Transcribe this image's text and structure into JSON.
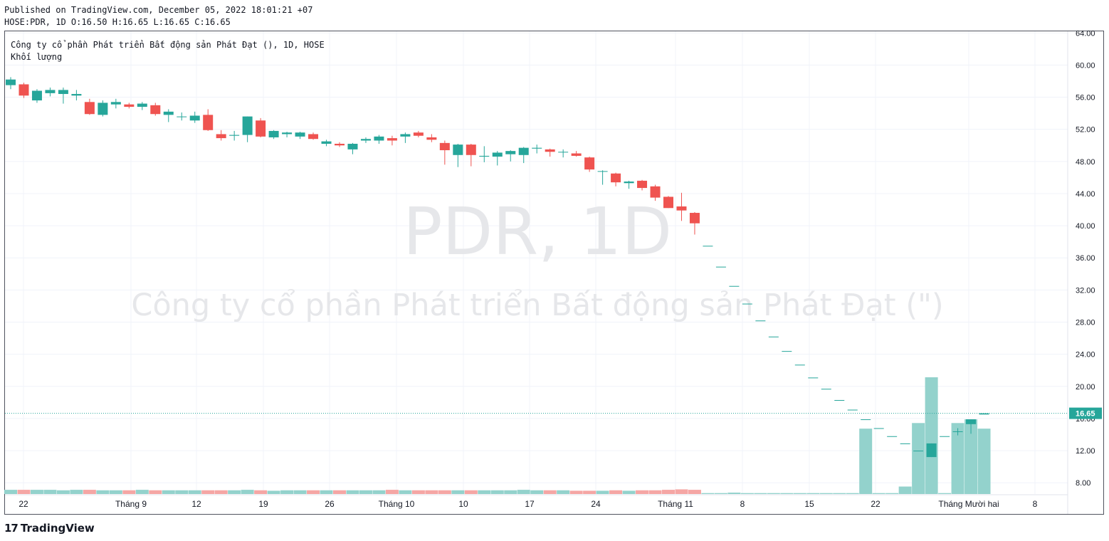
{
  "header": {
    "published": "Published on TradingView.com, December 05, 2022 18:01:21 +07",
    "ohlc": "HOSE:PDR, 1D O:16.50 H:16.65 L:16.65 C:16.65"
  },
  "legend": {
    "title": "Công ty cổ phần Phát triển Bất động sản Phát Đạt (), 1D, HOSE",
    "volume_label": "Khối lượng"
  },
  "watermark": {
    "symbol": "PDR, 1D",
    "company": "Công ty cổ phần Phát triển Bất động sản Phát Đạt (\")"
  },
  "footer": {
    "logo_mark": "17",
    "brand": "TradingView"
  },
  "colors": {
    "up": "#26a69a",
    "down": "#ef5350",
    "volume_up": "#93d2cc",
    "volume_down": "#f5a6a4",
    "grid": "#f0f3fa",
    "price_line": "#26a69a",
    "watermark": "#e6e7ea"
  },
  "chart_data": {
    "type": "candlestick",
    "symbol": "HOSE:PDR",
    "interval": "1D",
    "y_axis": {
      "ticks": [
        "64.00",
        "60.00",
        "56.00",
        "52.00",
        "48.00",
        "44.00",
        "40.00",
        "36.00",
        "32.00",
        "28.00",
        "24.00",
        "20.00",
        "16.00",
        "12.00",
        "8.00"
      ],
      "range": [
        6.6,
        64.2
      ]
    },
    "last_price": 16.65,
    "last_price_label": "16.65",
    "x_axis": {
      "ticks": [
        "22",
        "Tháng 9",
        "12",
        "19",
        "26",
        "Tháng 10",
        "10",
        "17",
        "24",
        "Tháng 11",
        "8",
        "15",
        "22",
        "Tháng Mười hai",
        "8"
      ]
    },
    "candles": [
      {
        "o": 57.5,
        "h": 58.5,
        "l": 57.0,
        "c": 58.2
      },
      {
        "o": 57.6,
        "h": 57.8,
        "l": 55.9,
        "c": 56.2
      },
      {
        "o": 55.6,
        "h": 57.0,
        "l": 55.3,
        "c": 56.8
      },
      {
        "o": 56.5,
        "h": 57.2,
        "l": 56.1,
        "c": 56.9
      },
      {
        "o": 56.4,
        "h": 57.2,
        "l": 55.2,
        "c": 56.9
      },
      {
        "o": 56.2,
        "h": 56.9,
        "l": 55.6,
        "c": 56.4
      },
      {
        "o": 55.4,
        "h": 55.8,
        "l": 53.8,
        "c": 53.9
      },
      {
        "o": 53.8,
        "h": 55.6,
        "l": 53.6,
        "c": 55.3
      },
      {
        "o": 55.1,
        "h": 55.8,
        "l": 54.6,
        "c": 55.4
      },
      {
        "o": 55.1,
        "h": 55.3,
        "l": 54.6,
        "c": 54.8
      },
      {
        "o": 54.8,
        "h": 55.4,
        "l": 54.4,
        "c": 55.2
      },
      {
        "o": 55.0,
        "h": 55.3,
        "l": 53.7,
        "c": 53.9
      },
      {
        "o": 53.8,
        "h": 54.5,
        "l": 52.9,
        "c": 54.2
      },
      {
        "o": 53.6,
        "h": 54.1,
        "l": 53.1,
        "c": 53.6
      },
      {
        "o": 53.1,
        "h": 54.2,
        "l": 52.8,
        "c": 53.7
      },
      {
        "o": 53.8,
        "h": 54.5,
        "l": 51.8,
        "c": 51.9
      },
      {
        "o": 51.4,
        "h": 51.9,
        "l": 50.6,
        "c": 50.9
      },
      {
        "o": 51.2,
        "h": 51.8,
        "l": 50.6,
        "c": 51.3
      },
      {
        "o": 51.3,
        "h": 53.6,
        "l": 50.4,
        "c": 53.6
      },
      {
        "o": 53.1,
        "h": 53.4,
        "l": 51.0,
        "c": 51.1
      },
      {
        "o": 51.0,
        "h": 51.9,
        "l": 50.8,
        "c": 51.8
      },
      {
        "o": 51.4,
        "h": 51.7,
        "l": 51.0,
        "c": 51.6
      },
      {
        "o": 51.1,
        "h": 51.7,
        "l": 50.8,
        "c": 51.6
      },
      {
        "o": 51.4,
        "h": 51.6,
        "l": 50.7,
        "c": 50.8
      },
      {
        "o": 50.2,
        "h": 50.7,
        "l": 49.9,
        "c": 50.5
      },
      {
        "o": 50.2,
        "h": 50.4,
        "l": 49.8,
        "c": 50.0
      },
      {
        "o": 49.5,
        "h": 50.3,
        "l": 48.9,
        "c": 50.2
      },
      {
        "o": 50.6,
        "h": 51.0,
        "l": 50.3,
        "c": 50.8
      },
      {
        "o": 50.6,
        "h": 51.3,
        "l": 50.2,
        "c": 51.1
      },
      {
        "o": 50.9,
        "h": 51.2,
        "l": 50.0,
        "c": 50.6
      },
      {
        "o": 51.1,
        "h": 51.6,
        "l": 50.3,
        "c": 51.4
      },
      {
        "o": 51.6,
        "h": 51.8,
        "l": 51.0,
        "c": 51.2
      },
      {
        "o": 51.0,
        "h": 51.4,
        "l": 50.4,
        "c": 50.7
      },
      {
        "o": 50.3,
        "h": 50.6,
        "l": 47.6,
        "c": 49.4
      },
      {
        "o": 48.8,
        "h": 50.2,
        "l": 47.3,
        "c": 50.1
      },
      {
        "o": 50.1,
        "h": 50.2,
        "l": 47.4,
        "c": 48.8
      },
      {
        "o": 48.6,
        "h": 49.9,
        "l": 47.9,
        "c": 48.7
      },
      {
        "o": 48.6,
        "h": 49.3,
        "l": 47.5,
        "c": 49.1
      },
      {
        "o": 48.9,
        "h": 49.4,
        "l": 48.0,
        "c": 49.3
      },
      {
        "o": 48.8,
        "h": 49.8,
        "l": 47.8,
        "c": 49.7
      },
      {
        "o": 49.6,
        "h": 50.1,
        "l": 49.0,
        "c": 49.7
      },
      {
        "o": 49.5,
        "h": 49.6,
        "l": 48.6,
        "c": 49.2
      },
      {
        "o": 49.2,
        "h": 49.5,
        "l": 48.5,
        "c": 49.2
      },
      {
        "o": 49.0,
        "h": 49.3,
        "l": 48.6,
        "c": 48.7
      },
      {
        "o": 48.5,
        "h": 48.6,
        "l": 46.7,
        "c": 47.0
      },
      {
        "o": 46.8,
        "h": 46.9,
        "l": 45.1,
        "c": 46.8
      },
      {
        "o": 46.5,
        "h": 46.6,
        "l": 44.9,
        "c": 45.4
      },
      {
        "o": 45.3,
        "h": 45.6,
        "l": 44.6,
        "c": 45.5
      },
      {
        "o": 45.6,
        "h": 45.7,
        "l": 44.4,
        "c": 44.7
      },
      {
        "o": 44.9,
        "h": 45.1,
        "l": 43.1,
        "c": 43.5
      },
      {
        "o": 43.6,
        "h": 43.7,
        "l": 42.2,
        "c": 42.2
      },
      {
        "o": 42.4,
        "h": 44.1,
        "l": 40.6,
        "c": 41.9
      },
      {
        "o": 41.6,
        "h": 41.7,
        "l": 38.9,
        "c": 40.3
      },
      {
        "o": 37.5,
        "h": 37.5,
        "l": 37.5,
        "c": 37.5
      },
      {
        "o": 34.9,
        "h": 34.9,
        "l": 34.9,
        "c": 34.9
      },
      {
        "o": 32.5,
        "h": 32.5,
        "l": 32.5,
        "c": 32.5
      },
      {
        "o": 30.3,
        "h": 30.3,
        "l": 30.3,
        "c": 30.3
      },
      {
        "o": 28.2,
        "h": 28.2,
        "l": 28.2,
        "c": 28.2
      },
      {
        "o": 26.2,
        "h": 26.2,
        "l": 26.2,
        "c": 26.2
      },
      {
        "o": 24.4,
        "h": 24.4,
        "l": 24.4,
        "c": 24.4
      },
      {
        "o": 22.7,
        "h": 22.7,
        "l": 22.7,
        "c": 22.7
      },
      {
        "o": 21.1,
        "h": 21.1,
        "l": 21.1,
        "c": 21.1
      },
      {
        "o": 19.7,
        "h": 19.7,
        "l": 19.7,
        "c": 19.7
      },
      {
        "o": 18.3,
        "h": 18.3,
        "l": 18.3,
        "c": 18.3
      },
      {
        "o": 17.1,
        "h": 17.1,
        "l": 17.1,
        "c": 17.1
      },
      {
        "o": 15.9,
        "h": 15.9,
        "l": 15.9,
        "c": 15.9
      },
      {
        "o": 14.8,
        "h": 14.8,
        "l": 14.8,
        "c": 14.8
      },
      {
        "o": 13.8,
        "h": 13.8,
        "l": 13.8,
        "c": 13.8
      },
      {
        "o": 12.9,
        "h": 12.9,
        "l": 12.9,
        "c": 12.9
      },
      {
        "o": 12.0,
        "h": 12.0,
        "l": 12.0,
        "c": 12.0
      },
      {
        "o": 11.2,
        "h": 12.9,
        "l": 11.2,
        "c": 12.9
      },
      {
        "o": 13.8,
        "h": 13.8,
        "l": 13.8,
        "c": 13.8
      },
      {
        "o": 14.4,
        "h": 14.8,
        "l": 13.9,
        "c": 14.4
      },
      {
        "o": 15.3,
        "h": 15.9,
        "l": 14.1,
        "c": 15.9
      },
      {
        "o": 16.5,
        "h": 16.65,
        "l": 16.65,
        "c": 16.65
      }
    ],
    "volume": [
      0.9,
      0.9,
      0.9,
      0.9,
      0.8,
      0.9,
      0.9,
      0.8,
      0.8,
      0.8,
      0.9,
      0.8,
      0.8,
      0.8,
      0.8,
      0.8,
      0.8,
      0.8,
      0.9,
      0.8,
      0.7,
      0.8,
      0.8,
      0.8,
      0.8,
      0.8,
      0.8,
      0.8,
      0.8,
      0.9,
      0.8,
      0.8,
      0.8,
      0.8,
      0.8,
      0.8,
      0.8,
      0.8,
      0.8,
      0.9,
      0.8,
      0.8,
      0.8,
      0.7,
      0.7,
      0.7,
      0.8,
      0.7,
      0.8,
      0.8,
      0.9,
      1.0,
      0.9,
      0.2,
      0.2,
      0.3,
      0.2,
      0.2,
      0.2,
      0.2,
      0.2,
      0.2,
      0.2,
      0.2,
      0.2,
      14.0,
      0.2,
      0.2,
      1.6,
      15.2,
      25.0,
      0.2,
      15.2,
      16.0,
      14.0
    ],
    "volume_units": "relative"
  }
}
